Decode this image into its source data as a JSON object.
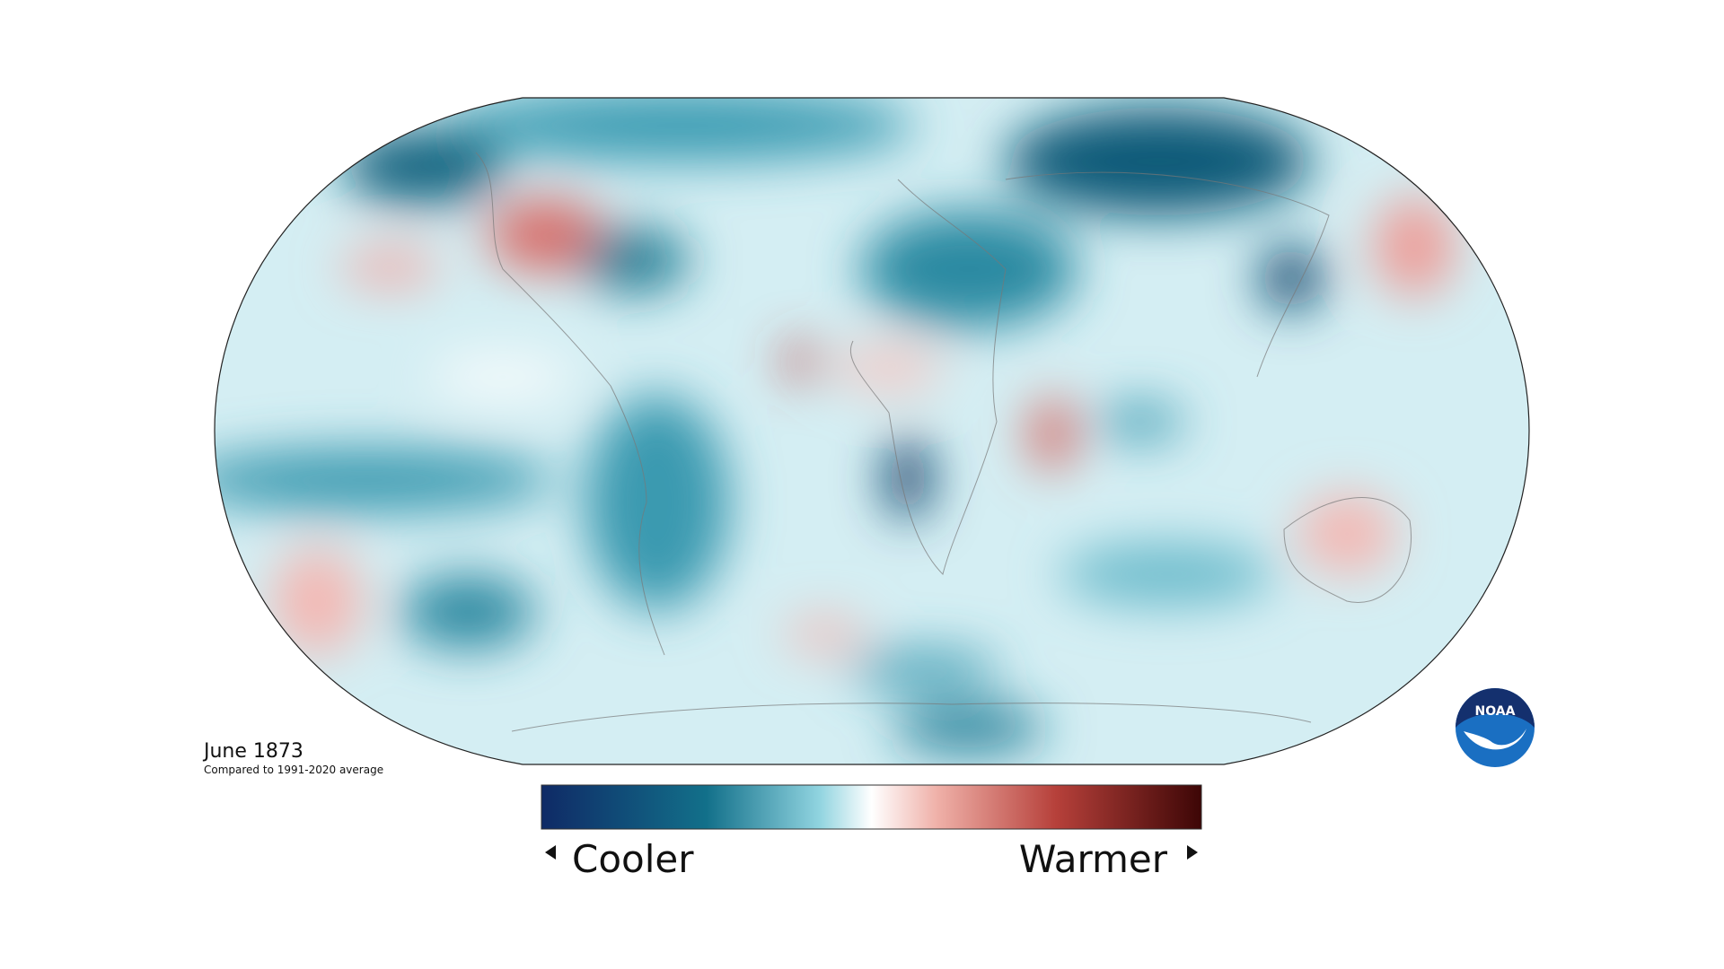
{
  "map": {
    "title": "June 1873",
    "subtitle": "Compared to 1991-2020 average",
    "legend": {
      "low_label": "Cooler",
      "high_label": "Warmer"
    },
    "logo": "NOAA"
  }
}
